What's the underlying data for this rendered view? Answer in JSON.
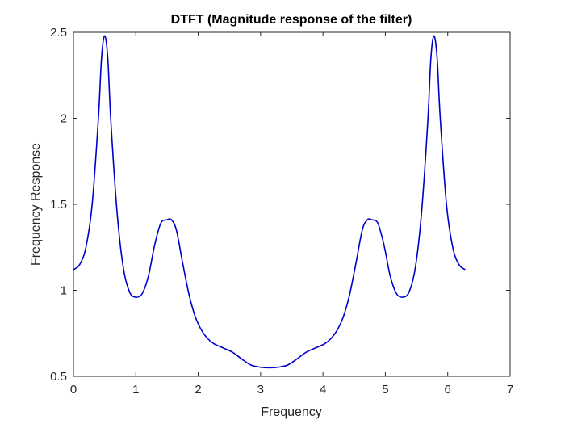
{
  "chart_data": {
    "type": "line",
    "title": "DTFT (Magnitude response of the filter)",
    "xlabel": "Frequency",
    "ylabel": "Frequency Response",
    "xlim": [
      0,
      7
    ],
    "ylim": [
      0.5,
      2.5
    ],
    "xticks": [
      "0",
      "1",
      "2",
      "3",
      "4",
      "5",
      "6",
      "7"
    ],
    "yticks": [
      "0.5",
      "1",
      "1.5",
      "2",
      "2.5"
    ],
    "grid": false,
    "line_color": "#0000cc",
    "series": [
      {
        "x": [
          0,
          0.1,
          0.2,
          0.3,
          0.4,
          0.45,
          0.5,
          0.55,
          0.6,
          0.7,
          0.8,
          0.9,
          1.0,
          1.1,
          1.2,
          1.3,
          1.4,
          1.5,
          1.57,
          1.65,
          1.75,
          1.85,
          1.95,
          2.05,
          2.15,
          2.25,
          2.4,
          2.55,
          2.7,
          2.85,
          3.0,
          3.14,
          3.28,
          3.43,
          3.58,
          3.73,
          3.88,
          4.03,
          4.13,
          4.23,
          4.33,
          4.43,
          4.53,
          4.63,
          4.71,
          4.78,
          4.88,
          4.98,
          5.08,
          5.18,
          5.28,
          5.38,
          5.48,
          5.58,
          5.68,
          5.73,
          5.78,
          5.83,
          5.88,
          5.98,
          6.08,
          6.18,
          6.28
        ],
        "y": [
          1.12,
          1.15,
          1.25,
          1.5,
          2.0,
          2.35,
          2.48,
          2.35,
          1.98,
          1.45,
          1.13,
          0.99,
          0.96,
          0.98,
          1.08,
          1.26,
          1.39,
          1.41,
          1.41,
          1.35,
          1.16,
          0.98,
          0.85,
          0.77,
          0.72,
          0.69,
          0.665,
          0.64,
          0.6,
          0.565,
          0.553,
          0.55,
          0.553,
          0.565,
          0.6,
          0.64,
          0.665,
          0.69,
          0.72,
          0.77,
          0.85,
          0.98,
          1.16,
          1.35,
          1.41,
          1.41,
          1.39,
          1.26,
          1.08,
          0.98,
          0.96,
          0.99,
          1.13,
          1.45,
          1.98,
          2.35,
          2.48,
          2.35,
          2.0,
          1.5,
          1.25,
          1.15,
          1.12
        ]
      }
    ]
  }
}
